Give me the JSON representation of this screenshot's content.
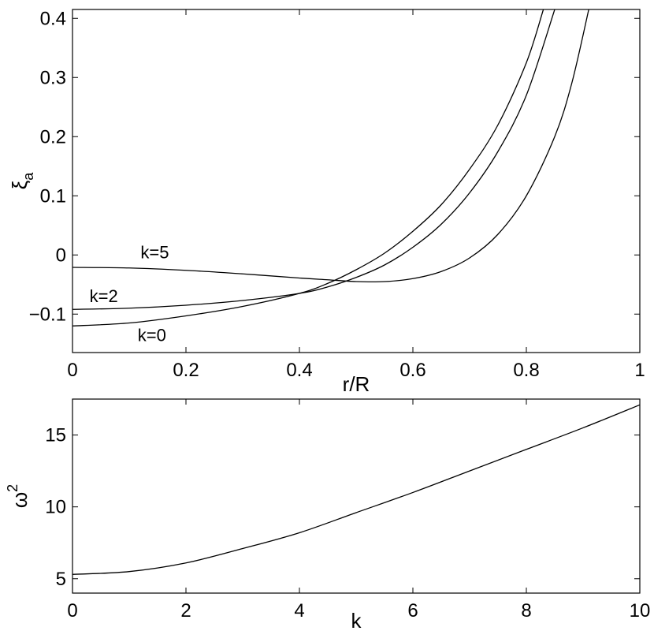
{
  "chart_data": [
    {
      "type": "line",
      "xlabel": "r/R",
      "ylabel": {
        "base": "ξ",
        "sub": "a"
      },
      "xlim": [
        0,
        1
      ],
      "ylim": [
        -0.165,
        0.415
      ],
      "xticks": [
        0,
        0.2,
        0.4,
        0.6,
        0.8,
        1
      ],
      "xtick_labels": [
        "0",
        "0.2",
        "0.4",
        "0.6",
        "0.8",
        "1"
      ],
      "yticks": [
        -0.1,
        0,
        0.1,
        0.2,
        0.3,
        0.4
      ],
      "ytick_labels": [
        "−0.1",
        "0",
        "0.1",
        "0.2",
        "0.3",
        "0.4"
      ],
      "grid": false,
      "series": [
        {
          "name": "k=0",
          "x": [
            0,
            0.1,
            0.2,
            0.3,
            0.4,
            0.45,
            0.5,
            0.55,
            0.6,
            0.65,
            0.7,
            0.75,
            0.8,
            0.83
          ],
          "y": [
            -0.12,
            -0.115,
            -0.103,
            -0.087,
            -0.065,
            -0.048,
            -0.025,
            0.003,
            0.04,
            0.085,
            0.145,
            0.22,
            0.325,
            0.415
          ]
        },
        {
          "name": "k=2",
          "x": [
            0,
            0.1,
            0.2,
            0.3,
            0.4,
            0.45,
            0.5,
            0.55,
            0.6,
            0.65,
            0.7,
            0.75,
            0.8,
            0.85
          ],
          "y": [
            -0.092,
            -0.09,
            -0.085,
            -0.077,
            -0.065,
            -0.054,
            -0.038,
            -0.017,
            0.013,
            0.052,
            0.105,
            0.175,
            0.27,
            0.415
          ]
        },
        {
          "name": "k=5",
          "x": [
            0,
            0.1,
            0.2,
            0.3,
            0.4,
            0.45,
            0.5,
            0.55,
            0.6,
            0.65,
            0.7,
            0.75,
            0.8,
            0.85,
            0.88,
            0.91
          ],
          "y": [
            -0.021,
            -0.022,
            -0.026,
            -0.032,
            -0.039,
            -0.042,
            -0.045,
            -0.045,
            -0.04,
            -0.028,
            -0.005,
            0.035,
            0.1,
            0.2,
            0.29,
            0.415
          ]
        }
      ],
      "annotations": [
        {
          "text": "k=5",
          "x": 0.12,
          "y": 0.0
        },
        {
          "text": "k=2",
          "x": 0.03,
          "y": -0.074
        },
        {
          "text": "k=0",
          "x": 0.115,
          "y": -0.14
        }
      ]
    },
    {
      "type": "line",
      "xlabel": "k",
      "ylabel": {
        "base": "ω",
        "sup": "2"
      },
      "xlim": [
        0,
        10
      ],
      "ylim": [
        4,
        17.5
      ],
      "xticks": [
        0,
        2,
        4,
        6,
        8,
        10
      ],
      "xtick_labels": [
        "0",
        "2",
        "4",
        "6",
        "8",
        "10"
      ],
      "yticks": [
        5,
        10,
        15
      ],
      "ytick_labels": [
        "5",
        "10",
        "15"
      ],
      "grid": false,
      "series": [
        {
          "name": "",
          "x": [
            0,
            1,
            2,
            3,
            4,
            5,
            6,
            7,
            8,
            9,
            10
          ],
          "y": [
            5.3,
            5.5,
            6.1,
            7.1,
            8.2,
            9.6,
            11.0,
            12.5,
            14.0,
            15.5,
            17.1
          ]
        }
      ]
    }
  ]
}
